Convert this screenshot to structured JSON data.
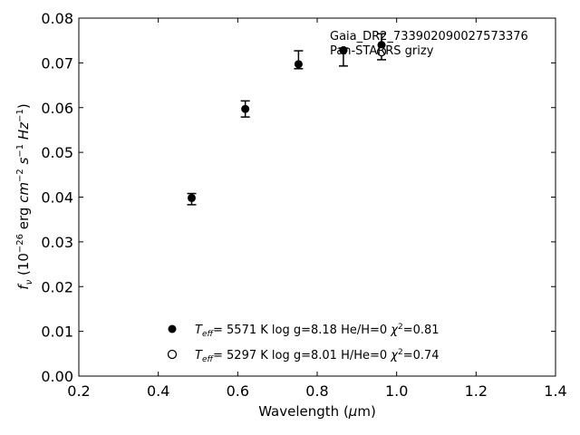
{
  "chart_data": {
    "type": "scatter",
    "xlabel_html": "Wavelength (<tspan font-style=\"italic\">μ</tspan>m)",
    "ylabel_html": "<tspan font-style=\"italic\">f</tspan><tspan font-style=\"italic\" font-size=\"10\" dy=\"4\">ν</tspan><tspan dy=\"-4\"> (10</tspan><tspan font-size=\"10\" dy=\"-6\">−26</tspan><tspan dy=\"6\"> erg </tspan><tspan font-style=\"italic\">cm</tspan><tspan font-size=\"10\" dy=\"-6\">−2</tspan><tspan dy=\"6\"> </tspan><tspan font-style=\"italic\">s</tspan><tspan font-size=\"10\" dy=\"-6\">−1</tspan><tspan dy=\"6\"> </tspan><tspan font-style=\"italic\">Hz</tspan><tspan font-size=\"10\" dy=\"-6\">−1</tspan><tspan dy=\"6\">)</tspan>",
    "xlim": [
      0.2,
      1.4
    ],
    "ylim": [
      0.0,
      0.08
    ],
    "xticks": [
      "0.2",
      "0.4",
      "0.6",
      "0.8",
      "1.0",
      "1.2",
      "1.4"
    ],
    "yticks": [
      "0.00",
      "0.01",
      "0.02",
      "0.03",
      "0.04",
      "0.05",
      "0.06",
      "0.07",
      "0.08"
    ],
    "grid": false,
    "annotation_lines": [
      "Gaia_DR2_733902090027573376",
      "Pan-STARRS grizy"
    ],
    "observed": [
      {
        "x": 0.484,
        "y": 0.0398,
        "err_lo": 0.0015,
        "err_hi": 0.001
      },
      {
        "x": 0.619,
        "y": 0.0597,
        "err_lo": 0.0018,
        "err_hi": 0.0018
      },
      {
        "x": 0.753,
        "y": 0.0697,
        "err_lo": 0.001,
        "err_hi": 0.003
      },
      {
        "x": 0.866,
        "y": 0.0728,
        "err_lo": 0.0035,
        "err_hi": 0.0005
      },
      {
        "x": 0.962,
        "y": 0.074,
        "err_lo": 0.0,
        "err_hi": 0.0025
      }
    ],
    "models": [
      {
        "marker": "filled",
        "x": 0.866,
        "y": 0.0728
      },
      {
        "marker": "open",
        "x": 0.962,
        "y": 0.0725,
        "err_lo": 0.0018,
        "err_hi": 0.0
      }
    ],
    "legend_placement": "lower-center",
    "legend": [
      {
        "marker": "filled",
        "label_html": "<tspan font-style=\"italic\">T</tspan><tspan font-style=\"italic\" font-size=\"9\" dy=\"3\">eff</tspan><tspan dy=\"-3\">=  5571 K  log g=8.18  He/H=0  </tspan><tspan font-style=\"italic\">χ</tspan><tspan font-size=\"9\" dy=\"-5\">2</tspan><tspan dy=\"5\">=0.81</tspan>"
      },
      {
        "marker": "open",
        "label_html": "<tspan font-style=\"italic\">T</tspan><tspan font-style=\"italic\" font-size=\"9\" dy=\"3\">eff</tspan><tspan dy=\"-3\">=  5297 K  log g=8.01  H/He=0  </tspan><tspan font-style=\"italic\">χ</tspan><tspan font-size=\"9\" dy=\"-5\">2</tspan><tspan dy=\"5\">=0.74</tspan>"
      }
    ]
  }
}
